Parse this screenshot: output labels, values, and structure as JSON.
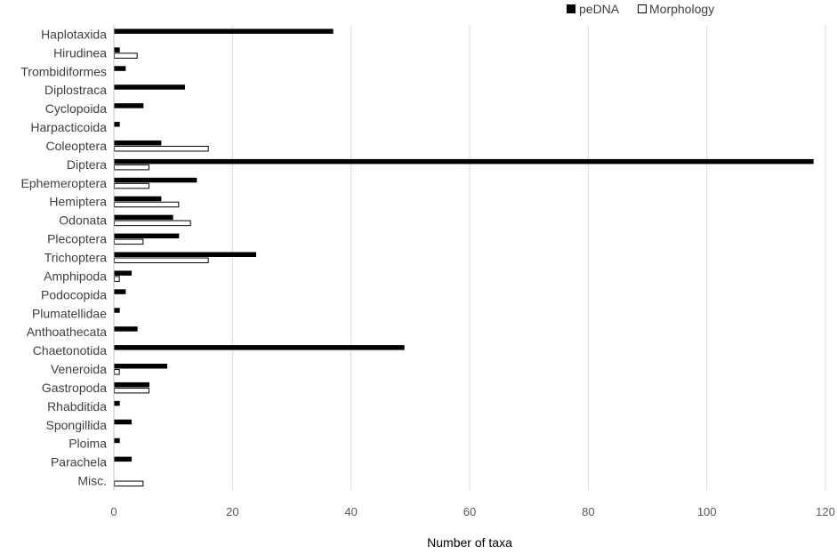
{
  "chart_data": {
    "type": "bar",
    "orientation": "horizontal",
    "title": "",
    "xlabel": "Number of taxa",
    "ylabel": "",
    "xlim": [
      0,
      120
    ],
    "x_ticks": [
      0,
      20,
      40,
      60,
      80,
      100,
      120
    ],
    "grid": "vertical gridlines",
    "legend_position": "top-right",
    "categories": [
      "Haplotaxida",
      "Hirudinea",
      "Trombidiformes",
      "Diplostraca",
      "Cyclopoida",
      "Harpacticoida",
      "Coleoptera",
      "Diptera",
      "Ephemeroptera",
      "Hemiptera",
      "Odonata",
      "Plecoptera",
      "Trichoptera",
      "Amphipoda",
      "Podocopida",
      "Plumatellidae",
      "Anthoathecata",
      "Chaetonotida",
      "Veneroida",
      "Gastropoda",
      "Rhabditida",
      "Spongillida",
      "Ploima",
      "Parachela",
      "Misc."
    ],
    "series": [
      {
        "name": "peDNA",
        "color": "#000000",
        "fill": "solid",
        "values": [
          37,
          1,
          2,
          12,
          5,
          1,
          8,
          118,
          14,
          8,
          10,
          11,
          24,
          3,
          2,
          1,
          4,
          49,
          9,
          6,
          1,
          3,
          1,
          3,
          0
        ]
      },
      {
        "name": "Morphology",
        "color": "#000000",
        "fill": "outline",
        "values": [
          0,
          4,
          0,
          0,
          0,
          0,
          16,
          6,
          6,
          11,
          13,
          5,
          16,
          1,
          0,
          0,
          0,
          0,
          1,
          6,
          0,
          0,
          0,
          0,
          5
        ]
      }
    ]
  }
}
